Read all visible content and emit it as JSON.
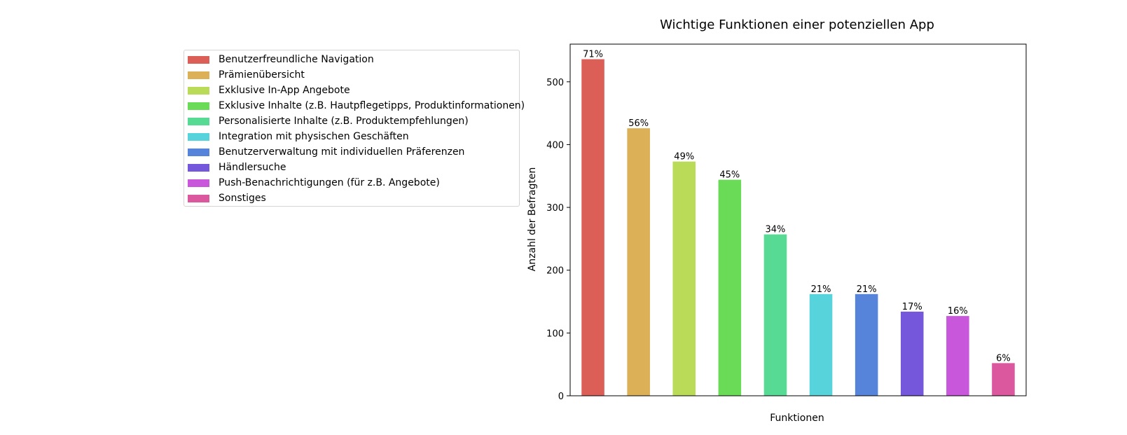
{
  "chart_data": {
    "type": "bar",
    "title": "Wichtige Funktionen einer potenziellen App",
    "xlabel": "Funktionen",
    "ylabel": "Anzahl der Befragten",
    "ylim": [
      0,
      560
    ],
    "yticks": [
      0,
      100,
      200,
      300,
      400,
      500
    ],
    "grid": false,
    "legend_placement": "left, outside plot",
    "categories": [
      "Benutzerfreundliche Navigation",
      "Prämienübersicht",
      "Exklusive In-App Angebote",
      "Exklusive Inhalte (z.B. Hautpflegetipps, Produktinformationen)",
      "Personalisierte Inhalte (z.B. Produktempfehlungen)",
      "Integration mit physischen Geschäften",
      "Benutzerverwaltung mit individuellen Präferenzen",
      "Händlersuche",
      "Push-Benachrichtigungen (für z.B. Angebote)",
      "Sonstiges"
    ],
    "values": [
      536,
      426,
      373,
      344,
      257,
      162,
      162,
      134,
      127,
      52
    ],
    "labels": [
      "71%",
      "56%",
      "49%",
      "45%",
      "34%",
      "21%",
      "21%",
      "17%",
      "16%",
      "6%"
    ],
    "colors": [
      "#db5f57",
      "#dbb057",
      "#b9db57",
      "#69db57",
      "#57db94",
      "#57d3db",
      "#5784db",
      "#7557db",
      "#c957db",
      "#db579e"
    ]
  }
}
